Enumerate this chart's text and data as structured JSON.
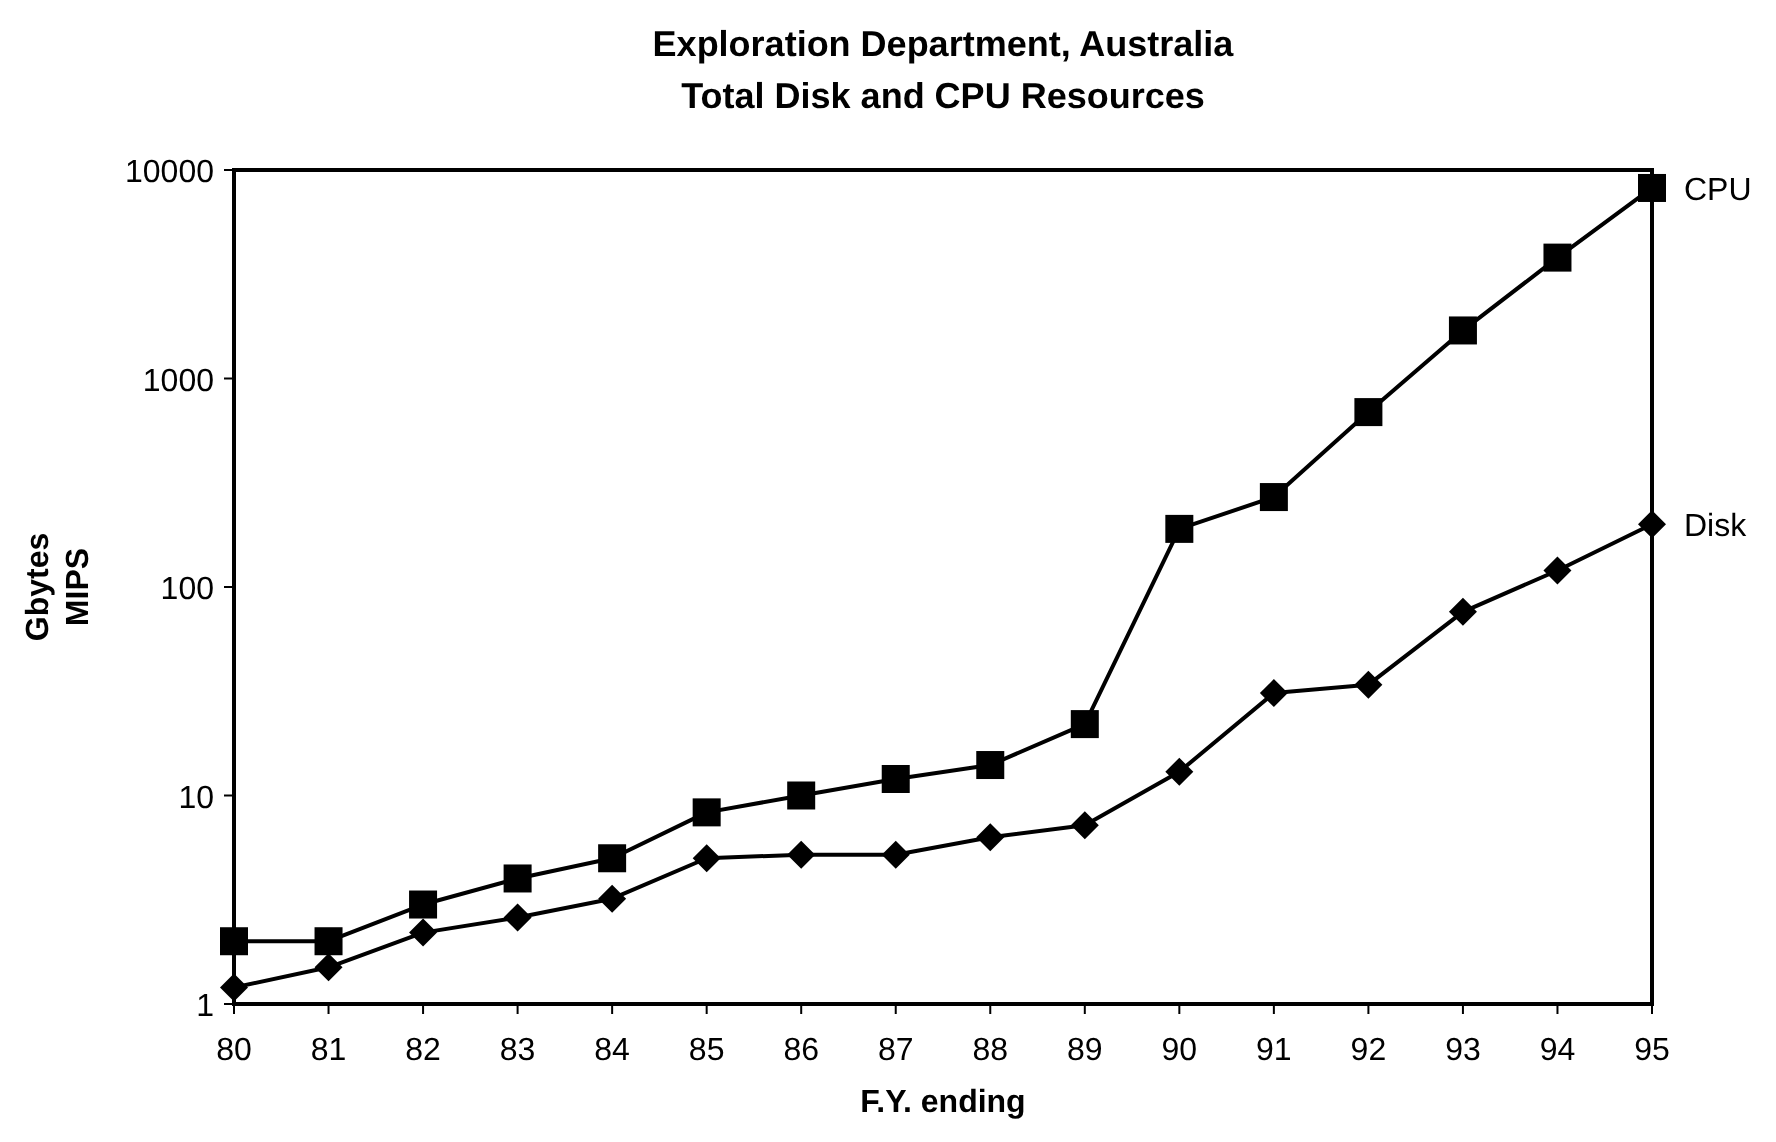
{
  "chart_data": {
    "type": "line",
    "title": "Exploration Department,  Australia\nTotal Disk and CPU Resources",
    "xlabel": "F.Y. ending",
    "ylabel": "Gbytes\nMIPS",
    "categories": [
      "80",
      "81",
      "82",
      "83",
      "84",
      "85",
      "86",
      "87",
      "88",
      "89",
      "90",
      "91",
      "92",
      "93",
      "94",
      "95"
    ],
    "series": [
      {
        "name": "CPU",
        "color": "#000000",
        "marker": "square",
        "values": [
          2.0,
          2.0,
          3.0,
          4.0,
          5.0,
          8.3,
          10,
          12,
          14,
          22,
          190,
          270,
          690,
          1700,
          3800,
          8200
        ]
      },
      {
        "name": "Disk",
        "color": "#000000",
        "marker": "diamond",
        "values": [
          1.2,
          1.5,
          2.2,
          2.6,
          3.2,
          5.0,
          5.2,
          5.2,
          6.3,
          7.2,
          13,
          31,
          34,
          76,
          120,
          200
        ]
      }
    ],
    "log": true,
    "ylim": [
      1,
      10000
    ],
    "yticks": [
      1,
      10,
      100,
      1000,
      10000
    ],
    "grid": false,
    "legend": false,
    "line_style": "solid"
  }
}
